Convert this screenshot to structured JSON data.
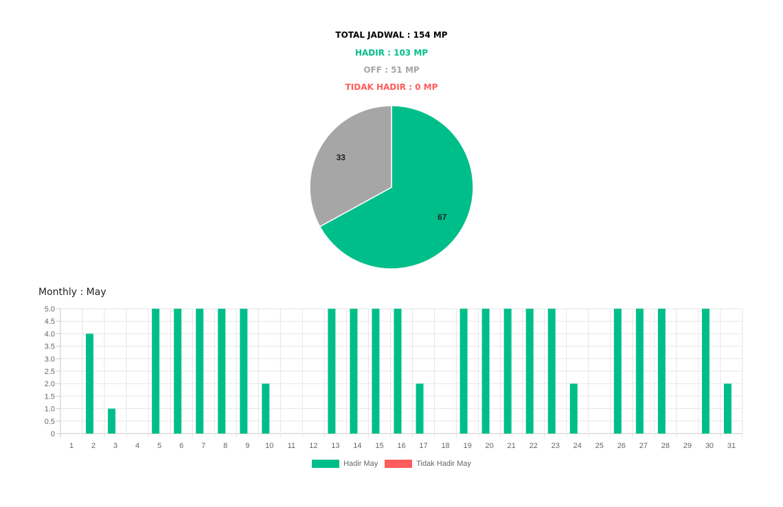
{
  "summary": {
    "total": "TOTAL JADWAL : 154 MP",
    "hadir": "HADIR : 103 MP",
    "off": "OFF : 51 MP",
    "tidak_hadir": "TIDAK HADIR : 0 MP"
  },
  "colors": {
    "hadir": "#00be8a",
    "off": "#a6a6a6",
    "tidak_hadir": "#ff5c5c"
  },
  "monthly_title": "Monthly : May",
  "legend": {
    "hadir_label": "Hadir May",
    "tidak_label": "Tidak Hadir May"
  },
  "chart_data": [
    {
      "type": "pie",
      "slices": [
        {
          "label": "",
          "value": 67,
          "color": "#00be8a"
        },
        {
          "label": "",
          "value": 33,
          "color": "#a6a6a6"
        }
      ],
      "data_labels": [
        "67",
        "33"
      ]
    },
    {
      "type": "bar",
      "title": "Monthly : May",
      "categories": [
        "1",
        "2",
        "3",
        "4",
        "5",
        "6",
        "7",
        "8",
        "9",
        "10",
        "11",
        "12",
        "13",
        "14",
        "15",
        "16",
        "17",
        "18",
        "19",
        "20",
        "21",
        "22",
        "23",
        "24",
        "25",
        "26",
        "27",
        "28",
        "29",
        "30",
        "31"
      ],
      "series": [
        {
          "name": "Hadir May",
          "color": "#00be8a",
          "values": [
            0,
            4,
            1,
            0,
            5,
            5,
            5,
            5,
            5,
            2,
            0,
            0,
            5,
            5,
            5,
            5,
            2,
            0,
            5,
            5,
            5,
            5,
            5,
            2,
            0,
            5,
            5,
            5,
            0,
            5,
            2
          ]
        },
        {
          "name": "Tidak Hadir May",
          "color": "#ff5c5c",
          "values": [
            0,
            0,
            0,
            0,
            0,
            0,
            0,
            0,
            0,
            0,
            0,
            0,
            0,
            0,
            0,
            0,
            0,
            0,
            0,
            0,
            0,
            0,
            0,
            0,
            0,
            0,
            0,
            0,
            0,
            0,
            0
          ]
        }
      ],
      "yticks": [
        "0",
        "0.5",
        "1.0",
        "1.5",
        "2.0",
        "2.5",
        "3.0",
        "3.5",
        "4.0",
        "4.5",
        "5.0"
      ],
      "ylim": [
        0,
        5
      ],
      "grid": true,
      "legend": "bottom-center"
    }
  ]
}
